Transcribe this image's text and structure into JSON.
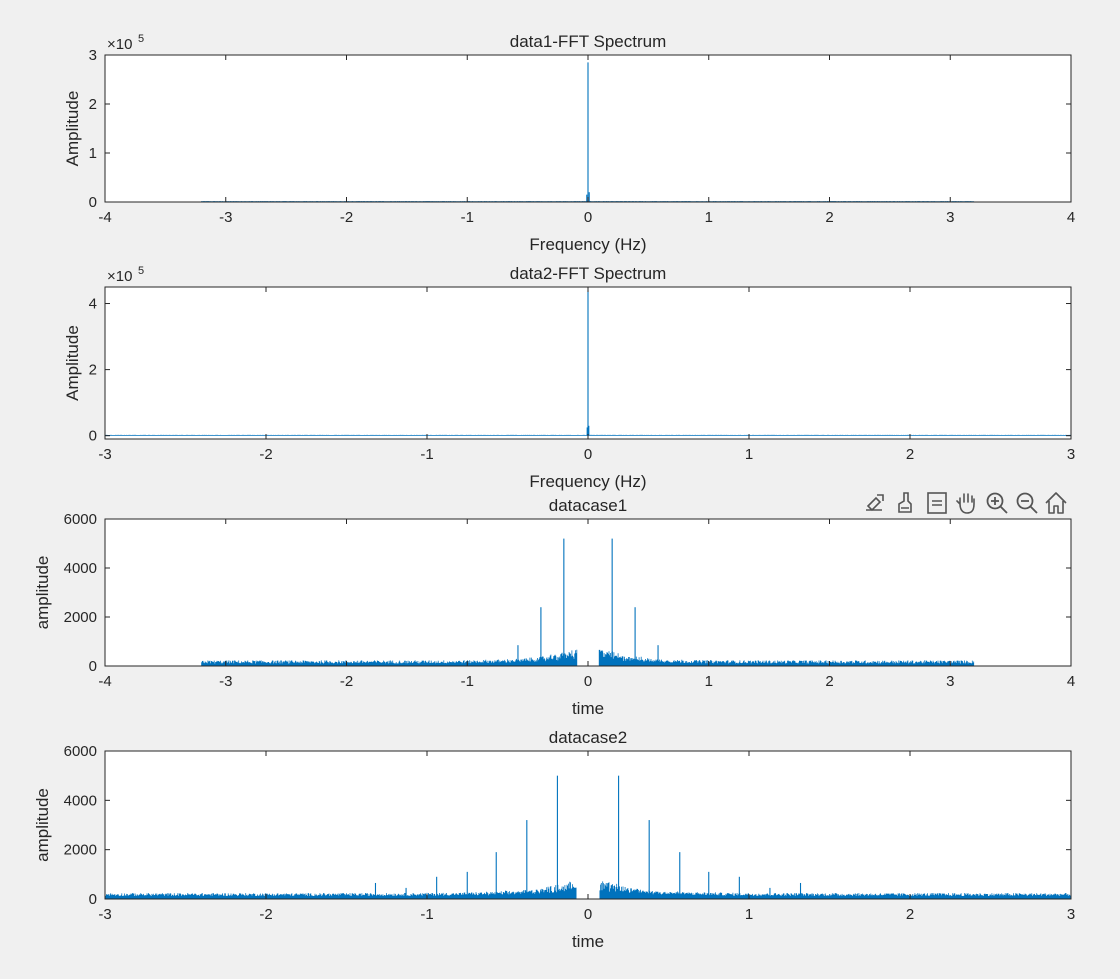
{
  "colors": {
    "line": "#0072bd",
    "axes": "#262626",
    "figure_bg": "#f0f0f0",
    "plot_bg": "#ffffff"
  },
  "toolbar": {
    "icons": [
      "export-icon",
      "brush-icon",
      "legend-icon",
      "pan-hand-icon",
      "zoom-in-icon",
      "zoom-out-icon",
      "home-icon"
    ]
  },
  "chart_data": [
    {
      "type": "line",
      "title": "data1-FFT Spectrum",
      "xlabel": "Frequency (Hz)",
      "ylabel": "Amplitude",
      "exponent": "5",
      "xlim": [
        -4,
        4
      ],
      "ylim": [
        0,
        300000
      ],
      "xticks": [
        -4,
        -3,
        -2,
        -1,
        0,
        1,
        2,
        3,
        4
      ],
      "yticks": [
        0,
        100000,
        200000,
        300000
      ],
      "ytick_labels": [
        "0",
        "1",
        "2",
        "3"
      ],
      "data_range": [
        -3.2,
        3.2
      ],
      "baseline": 1500,
      "noise": 400,
      "peaks": [
        [
          0,
          285000
        ],
        [
          0.01,
          20000
        ],
        [
          -0.01,
          15000
        ]
      ],
      "grid": false
    },
    {
      "type": "line",
      "title": "data2-FFT Spectrum",
      "xlabel": "Frequency (Hz)",
      "ylabel": "Amplitude",
      "exponent": "5",
      "xlim": [
        -3,
        3
      ],
      "ylim": [
        -10000,
        450000
      ],
      "xticks": [
        -3,
        -2,
        -1,
        0,
        1,
        2,
        3
      ],
      "yticks": [
        0,
        200000,
        400000
      ],
      "ytick_labels": [
        "0",
        "2",
        "4"
      ],
      "data_range": [
        -3,
        3
      ],
      "baseline": 2000,
      "noise": 500,
      "peaks": [
        [
          0,
          440000
        ],
        [
          0.005,
          30000
        ],
        [
          -0.005,
          25000
        ]
      ],
      "grid": false
    },
    {
      "type": "line",
      "title": "datacase1",
      "xlabel": "time",
      "ylabel": "amplitude",
      "exponent": "",
      "xlim": [
        -4,
        4
      ],
      "ylim": [
        0,
        6000
      ],
      "xticks": [
        -4,
        -3,
        -2,
        -1,
        0,
        1,
        2,
        3,
        4
      ],
      "yticks": [
        0,
        2000,
        4000,
        6000
      ],
      "ytick_labels": [
        "0",
        "2000",
        "4000",
        "6000"
      ],
      "data_range": [
        -3.2,
        3.2
      ],
      "baseline": 100,
      "noise": 130,
      "center_bump": 900,
      "gap": [
        -0.09,
        0.09
      ],
      "peaks": [
        [
          -0.2,
          5200
        ],
        [
          0.2,
          5200
        ],
        [
          -0.39,
          2400
        ],
        [
          0.39,
          2400
        ],
        [
          -0.58,
          850
        ],
        [
          0.58,
          850
        ]
      ],
      "grid": false
    },
    {
      "type": "line",
      "title": "datacase2",
      "xlabel": "time",
      "ylabel": "amplitude",
      "exponent": "",
      "xlim": [
        -3,
        3
      ],
      "ylim": [
        0,
        6000
      ],
      "xticks": [
        -3,
        -2,
        -1,
        0,
        1,
        2,
        3
      ],
      "yticks": [
        0,
        2000,
        4000,
        6000
      ],
      "ytick_labels": [
        "0",
        "2000",
        "4000",
        "6000"
      ],
      "data_range": [
        -3,
        3
      ],
      "baseline": 120,
      "noise": 120,
      "center_bump": 800,
      "gap": [
        -0.07,
        0.07
      ],
      "peaks": [
        [
          -0.19,
          5000
        ],
        [
          0.19,
          5000
        ],
        [
          -0.38,
          3200
        ],
        [
          0.38,
          3200
        ],
        [
          -0.57,
          1900
        ],
        [
          0.57,
          1900
        ],
        [
          -0.75,
          1100
        ],
        [
          0.75,
          1100
        ],
        [
          -0.94,
          900
        ],
        [
          0.94,
          900
        ],
        [
          -1.13,
          450
        ],
        [
          1.13,
          450
        ],
        [
          -1.32,
          650
        ],
        [
          1.32,
          650
        ]
      ],
      "grid": false
    }
  ]
}
